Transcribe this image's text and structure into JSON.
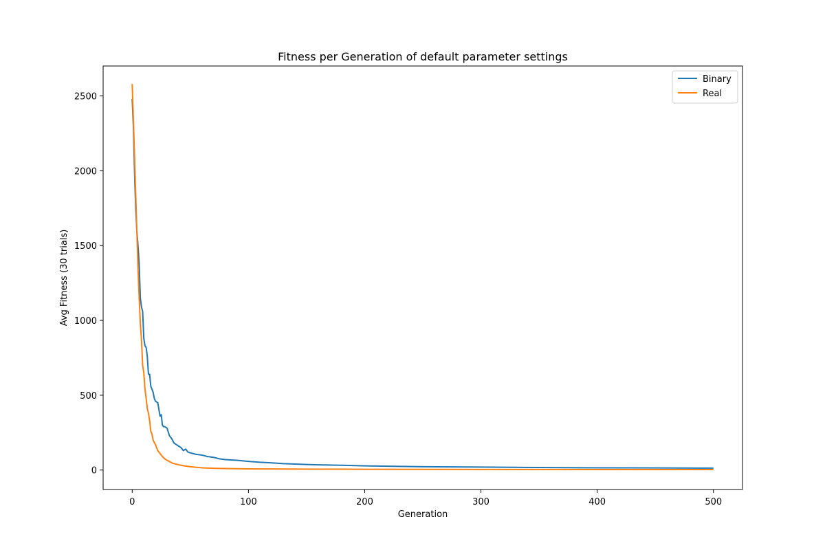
{
  "chart_data": {
    "type": "line",
    "title": "Fitness per Generation of default parameter settings",
    "xlabel": "Generation",
    "ylabel": "Avg Fitness (30 trials)",
    "xlim": [
      -25,
      525
    ],
    "ylim": [
      -130,
      2700
    ],
    "xticks": [
      0,
      100,
      200,
      300,
      400,
      500
    ],
    "yticks": [
      0,
      500,
      1000,
      1500,
      2000,
      2500
    ],
    "grid": false,
    "legend_position": "top-right",
    "series": [
      {
        "name": "Binary",
        "color": "#1f77b4",
        "x": [
          0,
          1,
          2,
          3,
          4,
          5,
          6,
          7,
          8,
          9,
          10,
          11,
          12,
          13,
          14,
          15,
          16,
          17,
          18,
          19,
          20,
          22,
          24,
          25,
          26,
          27,
          28,
          30,
          32,
          34,
          36,
          38,
          40,
          42,
          44,
          46,
          48,
          50,
          55,
          60,
          65,
          70,
          75,
          80,
          90,
          100,
          110,
          120,
          130,
          140,
          150,
          160,
          180,
          200,
          250,
          300,
          350,
          400,
          450,
          500
        ],
        "values": [
          2480,
          2300,
          2000,
          1750,
          1600,
          1500,
          1380,
          1150,
          1090,
          1060,
          880,
          830,
          820,
          760,
          640,
          640,
          560,
          540,
          520,
          480,
          460,
          450,
          360,
          370,
          300,
          290,
          290,
          280,
          230,
          210,
          180,
          170,
          160,
          150,
          130,
          140,
          120,
          115,
          105,
          100,
          90,
          85,
          75,
          70,
          65,
          58,
          52,
          48,
          43,
          40,
          37,
          35,
          32,
          28,
          22,
          20,
          17,
          15,
          14,
          13
        ]
      },
      {
        "name": "Real",
        "color": "#ff7f0e",
        "x": [
          0,
          1,
          2,
          3,
          4,
          5,
          6,
          7,
          8,
          9,
          10,
          11,
          12,
          13,
          14,
          15,
          16,
          17,
          18,
          20,
          22,
          24,
          26,
          28,
          30,
          35,
          40,
          45,
          50,
          60,
          70,
          80,
          100,
          120,
          150,
          200,
          300,
          400,
          500
        ],
        "values": [
          2580,
          2350,
          2100,
          1850,
          1600,
          1350,
          1150,
          980,
          870,
          700,
          650,
          540,
          480,
          410,
          380,
          330,
          260,
          240,
          200,
          170,
          130,
          110,
          90,
          75,
          65,
          45,
          35,
          28,
          22,
          15,
          12,
          10,
          8,
          7,
          6,
          5,
          4,
          3,
          3
        ]
      }
    ]
  }
}
